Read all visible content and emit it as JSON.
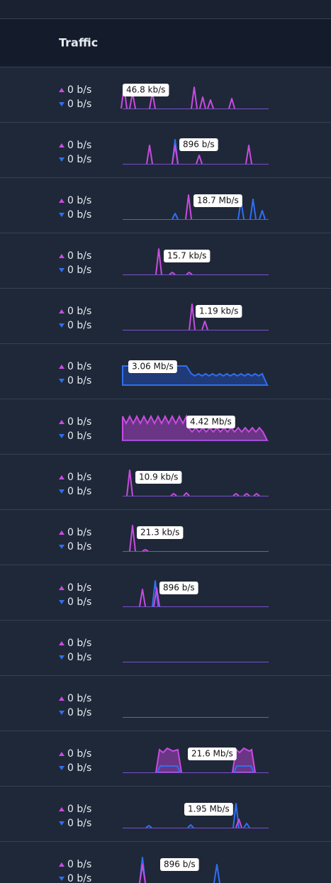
{
  "header": {
    "title": "Traffic"
  },
  "rows": [
    {
      "up": "0 b/s",
      "down": "0 b/s",
      "peak": "46.8 kb/s"
    },
    {
      "up": "0 b/s",
      "down": "0 b/s",
      "peak": "896 b/s"
    },
    {
      "up": "0 b/s",
      "down": "0 b/s",
      "peak": "18.7 Mb/s"
    },
    {
      "up": "0 b/s",
      "down": "0 b/s",
      "peak": "15.7 kb/s"
    },
    {
      "up": "0 b/s",
      "down": "0 b/s",
      "peak": "1.19 kb/s"
    },
    {
      "up": "0 b/s",
      "down": "0 b/s",
      "peak": "3.06 Mb/s"
    },
    {
      "up": "0 b/s",
      "down": "0 b/s",
      "peak": "4.42 Mb/s"
    },
    {
      "up": "0 b/s",
      "down": "0 b/s",
      "peak": "10.9 kb/s"
    },
    {
      "up": "0 b/s",
      "down": "0 b/s",
      "peak": "21.3 kb/s"
    },
    {
      "up": "0 b/s",
      "down": "0 b/s",
      "peak": "896 b/s"
    },
    {
      "up": "0 b/s",
      "down": "0 b/s"
    },
    {
      "up": "0 b/s",
      "down": "0 b/s"
    },
    {
      "up": "0 b/s",
      "down": "0 b/s",
      "peak": "21.6 Mb/s"
    },
    {
      "up": "0 b/s",
      "down": "0 b/s",
      "peak": "1.95 Mb/s"
    },
    {
      "up": "0 b/s",
      "down": "0 b/s",
      "peak": "896 b/s"
    }
  ]
}
